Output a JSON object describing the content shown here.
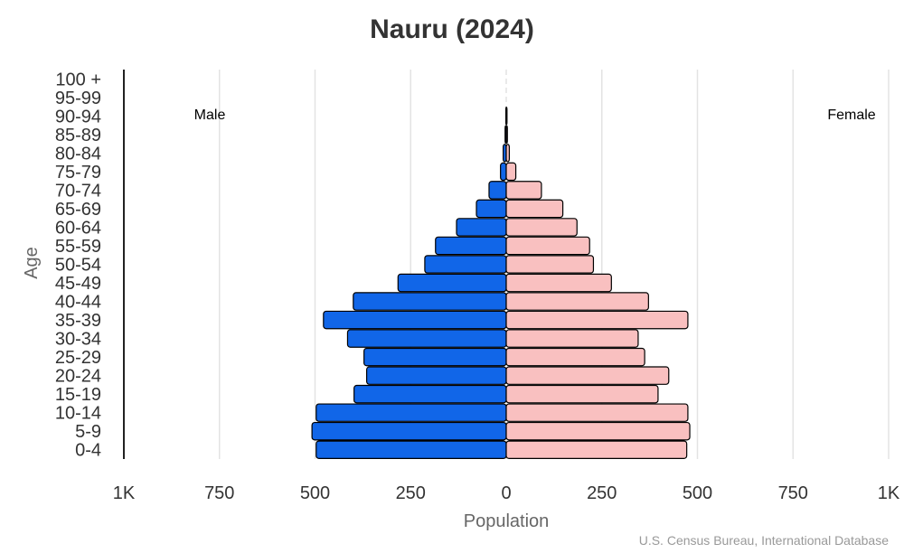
{
  "chart_data": {
    "type": "bar",
    "orientation": "horizontal",
    "title": "Nauru (2024)",
    "xlabel": "Population",
    "ylabel": "Age",
    "xlim": [
      -1000,
      1000
    ],
    "x_tick_values": [
      -1000,
      -750,
      -500,
      -250,
      0,
      250,
      500,
      750,
      1000
    ],
    "x_tick_labels": [
      "1K",
      "750",
      "500",
      "250",
      "0",
      "250",
      "500",
      "750",
      "1K"
    ],
    "grid": "vertical",
    "categories": [
      "0-4",
      "5-9",
      "10-14",
      "15-19",
      "20-24",
      "25-29",
      "30-34",
      "35-39",
      "40-44",
      "45-49",
      "50-54",
      "55-59",
      "60-64",
      "65-69",
      "70-74",
      "75-79",
      "80-84",
      "85-89",
      "90-94",
      "95-99",
      "100 +"
    ],
    "series": [
      {
        "name": "Male",
        "color": "#1166e8",
        "values": [
          497,
          508,
          497,
          398,
          365,
          372,
          415,
          478,
          400,
          283,
          213,
          185,
          130,
          78,
          45,
          15,
          8,
          3,
          1,
          0,
          0
        ]
      },
      {
        "name": "Female",
        "color": "#f9c0c0",
        "values": [
          472,
          480,
          475,
          397,
          425,
          362,
          345,
          475,
          372,
          275,
          228,
          218,
          185,
          148,
          92,
          25,
          8,
          3,
          2,
          0,
          0
        ]
      }
    ],
    "side_labels": {
      "left": "Male",
      "right": "Female"
    },
    "source": "U.S. Census Bureau, International Database"
  }
}
